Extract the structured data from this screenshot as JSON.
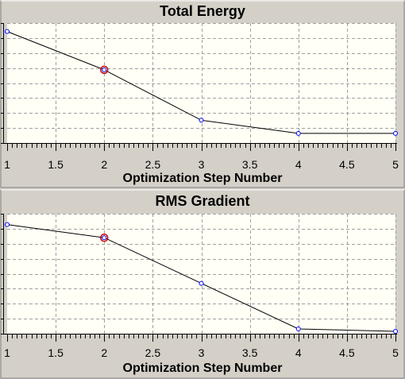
{
  "colors": {
    "background": "#d4d0c8",
    "plot_background": "#fffff5",
    "grid": "#a0a0a0",
    "line": "#000000",
    "marker": "#0000ff",
    "selected_marker": "#cc0000"
  },
  "chart_data": [
    {
      "type": "line",
      "title": "Total Energy",
      "xlabel": "Optimization Step Number",
      "ylabel": "",
      "x": [
        1,
        2,
        3,
        4,
        5
      ],
      "y": [
        0.93,
        0.61,
        0.19,
        0.08,
        0.08
      ],
      "xlim": [
        1,
        5
      ],
      "ylim": [
        0,
        1
      ],
      "xticks": [
        1,
        1.5,
        2,
        2.5,
        3,
        3.5,
        4,
        4.5,
        5
      ],
      "xtick_labels": [
        "1",
        "1.5",
        "2",
        "2.5",
        "3",
        "3.5",
        "4",
        "4.5",
        "5"
      ],
      "grid": true,
      "selected_index": 1
    },
    {
      "type": "line",
      "title": "RMS Gradient",
      "xlabel": "Optimization Step Number",
      "ylabel": "",
      "x": [
        1,
        2,
        3,
        4,
        5
      ],
      "y": [
        0.91,
        0.8,
        0.42,
        0.04,
        0.02
      ],
      "xlim": [
        1,
        5
      ],
      "ylim": [
        0,
        1
      ],
      "xticks": [
        1,
        1.5,
        2,
        2.5,
        3,
        3.5,
        4,
        4.5,
        5
      ],
      "xtick_labels": [
        "1",
        "1.5",
        "2",
        "2.5",
        "3",
        "3.5",
        "4",
        "4.5",
        "5"
      ],
      "grid": true,
      "selected_index": 1
    }
  ]
}
